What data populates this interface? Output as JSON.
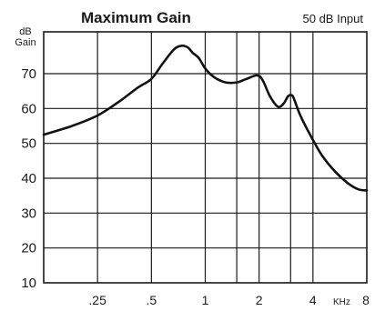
{
  "chart_data": {
    "type": "line",
    "title": "Maximum Gain",
    "subtitle": "50 dB Input",
    "ylabel": [
      "dB",
      "Gain"
    ],
    "xunit": "KHz",
    "xscale": "log",
    "xlim": [
      0.125,
      8
    ],
    "ylim": [
      10,
      82
    ],
    "yticks": [
      10,
      20,
      30,
      40,
      50,
      60,
      70
    ],
    "ygrid": [
      20,
      30,
      40,
      50,
      60,
      70
    ],
    "xticks": [
      {
        "value": 0.25,
        "label": ".25"
      },
      {
        "value": 0.5,
        "label": ".5"
      },
      {
        "value": 1,
        "label": "1"
      },
      {
        "value": 2,
        "label": "2"
      },
      {
        "value": 4,
        "label": "4"
      },
      {
        "value": 8,
        "label": "8"
      }
    ],
    "xgrid": [
      0.25,
      0.5,
      1,
      1.5,
      2,
      3,
      4
    ],
    "grid": true,
    "series": [
      {
        "x": [
          0.125,
          0.18,
          0.25,
          0.33,
          0.42,
          0.5,
          0.58,
          0.67,
          0.74,
          0.8,
          0.85,
          0.92,
          1.0,
          1.12,
          1.3,
          1.5,
          1.7,
          1.95,
          2.1,
          2.3,
          2.55,
          2.75,
          2.9,
          3.05,
          3.15,
          3.4,
          3.9,
          4.5,
          5.3,
          6.3,
          7.2,
          8.0
        ],
        "y": [
          52.5,
          55,
          58,
          62,
          66,
          68.5,
          73,
          77,
          78,
          77.5,
          76,
          74.5,
          71.5,
          69,
          67.5,
          67.5,
          68.5,
          69.5,
          68,
          63.5,
          60.5,
          61.5,
          63.5,
          63.8,
          62.5,
          58,
          52,
          46.5,
          42,
          38.5,
          36.8,
          36.5
        ]
      }
    ]
  }
}
